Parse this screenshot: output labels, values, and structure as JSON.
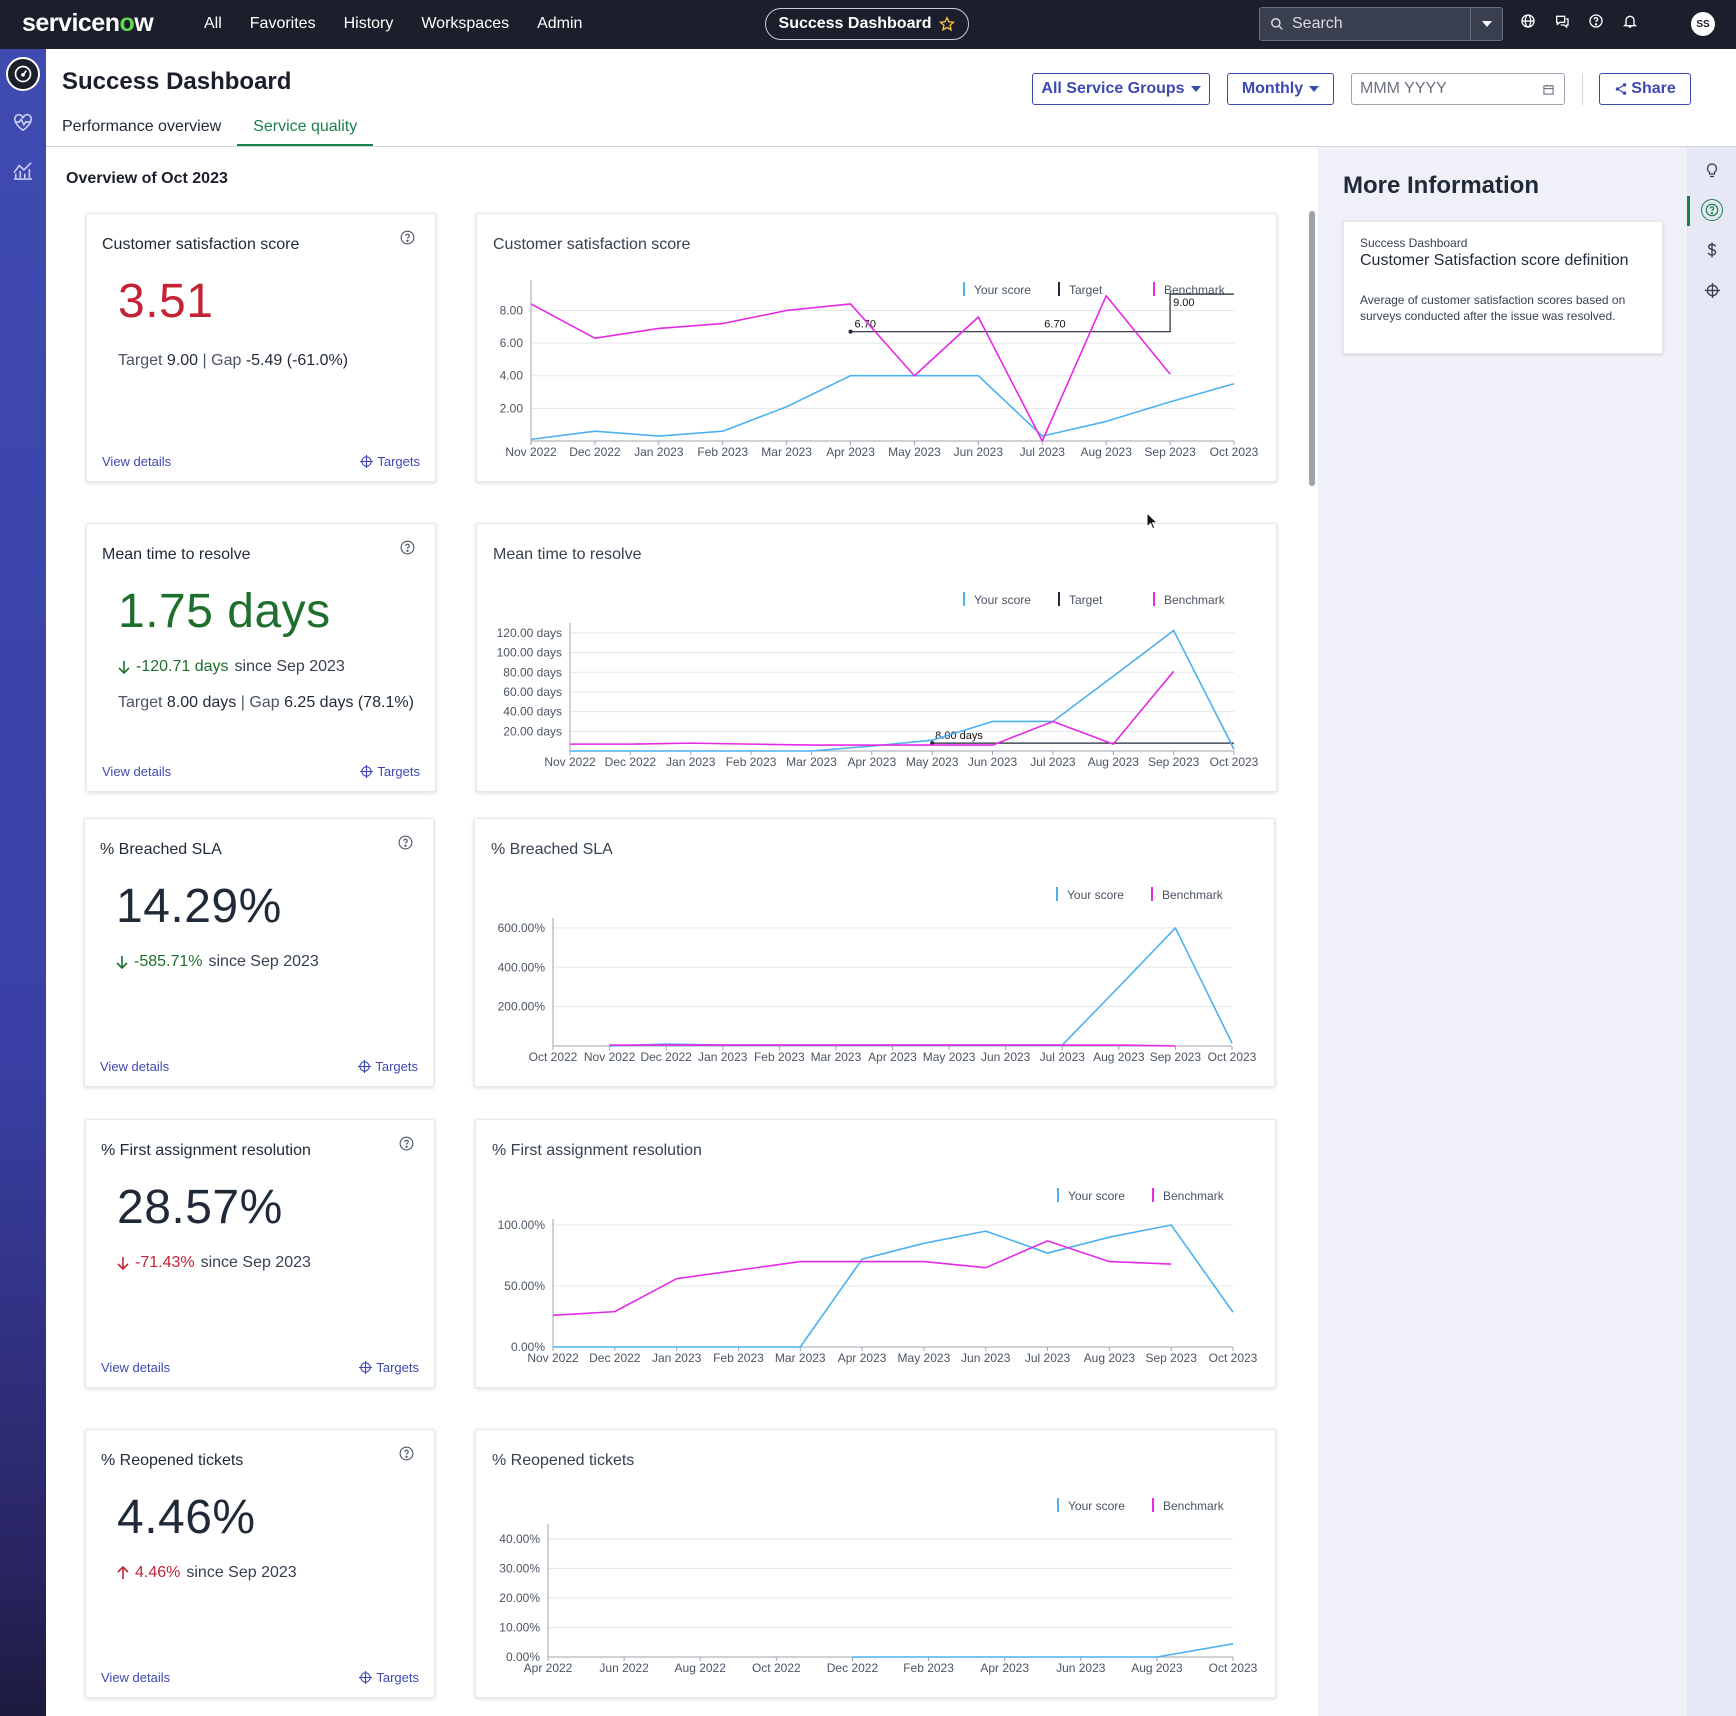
{
  "nav": {
    "logo_prefix": "servicen",
    "logo_o": "o",
    "logo_suffix": "w",
    "links": [
      "All",
      "Favorites",
      "History",
      "Workspaces",
      "Admin"
    ],
    "pill_label": "Success Dashboard",
    "search_placeholder": "Search",
    "avatar_initials": "SS"
  },
  "header": {
    "title": "Success Dashboard",
    "service_groups_label": "All Service Groups",
    "period_label": "Monthly",
    "date_placeholder": "MMM YYYY",
    "share_label": "Share",
    "tabs": [
      "Performance overview",
      "Service quality"
    ],
    "overview_label": "Overview of Oct 2023"
  },
  "kpis": [
    {
      "title": "Customer satisfaction score",
      "value": "3.51",
      "target_label": "Target",
      "target_value": "9.00",
      "gap_label": "Gap",
      "gap_value": "-5.49 (-61.0%)",
      "view_details": "View details",
      "targets": "Targets"
    },
    {
      "title": "Mean time to resolve",
      "value": "1.75 days",
      "delta_value": "-120.71 days",
      "delta_since": "since Sep 2023",
      "target_label": "Target",
      "target_value": "8.00 days",
      "gap_label": "Gap",
      "gap_value": "6.25 days (78.1%)",
      "view_details": "View details",
      "targets": "Targets"
    },
    {
      "title": "% Breached SLA",
      "value": "14.29%",
      "delta_value": "-585.71%",
      "delta_since": "since Sep 2023",
      "view_details": "View details",
      "targets": "Targets"
    },
    {
      "title": "% First assignment resolution",
      "value": "28.57%",
      "delta_value": "-71.43%",
      "delta_since": "since Sep 2023",
      "view_details": "View details",
      "targets": "Targets"
    },
    {
      "title": "% Reopened tickets",
      "value": "4.46%",
      "delta_value": "4.46%",
      "delta_since": "since Sep 2023",
      "view_details": "View details",
      "targets": "Targets"
    }
  ],
  "legend": {
    "your_score": "Your score",
    "target": "Target",
    "benchmark": "Benchmark"
  },
  "colors": {
    "your_score": "#4db1f0",
    "benchmark": "#e629e6",
    "target": "#1f2937",
    "brand_blue": "#3e48b3",
    "accent_green": "#1b7f4c",
    "alert_red": "#c42235"
  },
  "chart_data": [
    {
      "type": "line",
      "title": "Customer satisfaction score",
      "x": [
        "Nov 2022",
        "Dec 2022",
        "Jan 2023",
        "Feb 2023",
        "Mar 2023",
        "Apr 2023",
        "May 2023",
        "Jun 2023",
        "Jul 2023",
        "Aug 2023",
        "Sep 2023",
        "Oct 2023"
      ],
      "yticks": [
        "2.00",
        "4.00",
        "6.00",
        "8.00"
      ],
      "ylim": [
        0,
        9.5
      ],
      "series": [
        {
          "name": "Your score",
          "values": [
            0.1,
            0.6,
            0.3,
            0.6,
            2.1,
            4.0,
            4.0,
            4.0,
            0.3,
            1.2,
            2.4,
            3.51
          ]
        },
        {
          "name": "Benchmark",
          "values": [
            8.4,
            6.3,
            6.9,
            7.2,
            8.0,
            8.4,
            4.0,
            7.6,
            0.0,
            8.9,
            4.1,
            null
          ]
        }
      ],
      "target": {
        "start_index": 5,
        "values": [
          6.7,
          6.7,
          6.7,
          6.7,
          6.7,
          9.0,
          9.0
        ],
        "labels": [
          "6.70",
          "6.70",
          "9.00"
        ]
      }
    },
    {
      "type": "line",
      "title": "Mean time to resolve",
      "x": [
        "Nov 2022",
        "Dec 2022",
        "Jan 2023",
        "Feb 2023",
        "Mar 2023",
        "Apr 2023",
        "May 2023",
        "Jun 2023",
        "Jul 2023",
        "Aug 2023",
        "Sep 2023",
        "Oct 2023"
      ],
      "yticks": [
        "20.00 days",
        "40.00 days",
        "60.00 days",
        "80.00 days",
        "100.00 days",
        "120.00 days"
      ],
      "ylim": [
        0,
        124
      ],
      "series": [
        {
          "name": "Your score",
          "values": [
            0,
            0,
            0,
            0,
            0,
            5,
            11,
            30,
            30,
            76,
            122.46,
            1.75
          ]
        },
        {
          "name": "Benchmark",
          "values": [
            7,
            7,
            8,
            7,
            6,
            6,
            6,
            6,
            30,
            7,
            81,
            null
          ]
        }
      ],
      "target": {
        "start_index": 6,
        "values": [
          8,
          8,
          8,
          8,
          8,
          8
        ],
        "labels": [
          "8.00 days"
        ]
      }
    },
    {
      "type": "line",
      "title": "% Breached SLA",
      "x": [
        "Oct 2022",
        "Nov 2022",
        "Dec 2022",
        "Jan 2023",
        "Feb 2023",
        "Mar 2023",
        "Apr 2023",
        "May 2023",
        "Jun 2023",
        "Jul 2023",
        "Aug 2023",
        "Sep 2023",
        "Oct 2023"
      ],
      "yticks": [
        "200.00%",
        "400.00%",
        "600.00%"
      ],
      "ylim": [
        0,
        620
      ],
      "series": [
        {
          "name": "Your score",
          "values": [
            null,
            0,
            10,
            5,
            5,
            5,
            5,
            5,
            5,
            5,
            300,
            600,
            14.29
          ]
        },
        {
          "name": "Benchmark",
          "values": [
            null,
            5,
            5,
            5,
            5,
            5,
            5,
            5,
            5,
            5,
            5,
            0,
            null
          ]
        }
      ]
    },
    {
      "type": "line",
      "title": "% First assignment resolution",
      "x": [
        "Nov 2022",
        "Dec 2022",
        "Jan 2023",
        "Feb 2023",
        "Mar 2023",
        "Apr 2023",
        "May 2023",
        "Jun 2023",
        "Jul 2023",
        "Aug 2023",
        "Sep 2023",
        "Oct 2023"
      ],
      "yticks": [
        "0.00%",
        "50.00%",
        "100.00%"
      ],
      "ylim": [
        0,
        100
      ],
      "series": [
        {
          "name": "Your score",
          "values": [
            0,
            0,
            0,
            0,
            0,
            72,
            85,
            95,
            77,
            90,
            100,
            28.57
          ]
        },
        {
          "name": "Benchmark",
          "values": [
            26,
            29,
            56,
            63,
            70,
            70,
            70,
            65,
            87,
            70,
            68,
            null
          ]
        }
      ]
    },
    {
      "type": "line",
      "title": "% Reopened tickets",
      "x": [
        "Apr 2022",
        "Jun 2022",
        "Aug 2022",
        "Oct 2022",
        "Dec 2022",
        "Feb 2023",
        "Apr 2023",
        "Jun 2023",
        "Aug 2023",
        "Oct 2023"
      ],
      "yticks": [
        "0.00%",
        "10.00%",
        "20.00%",
        "30.00%",
        "40.00%"
      ],
      "ylim": [
        0,
        43
      ],
      "series": [
        {
          "name": "Your score",
          "values": [
            null,
            null,
            null,
            null,
            0,
            0,
            0,
            0,
            0,
            4.46
          ]
        }
      ]
    }
  ],
  "more_info": {
    "title": "More Information",
    "card_sub": "Success Dashboard",
    "card_head": "Customer Satisfaction score definition",
    "card_body": "Average of customer satisfaction scores based on surveys conducted after the issue was resolved."
  }
}
